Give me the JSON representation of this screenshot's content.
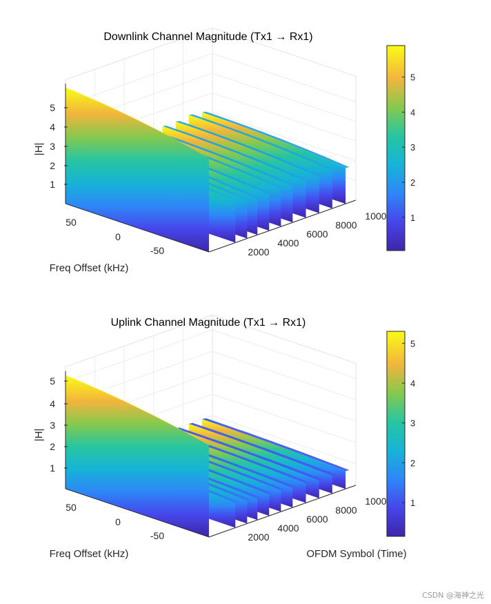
{
  "watermark": "CSDN @海神之光",
  "chart_data": [
    {
      "type": "surface",
      "title": "Downlink Channel Magnitude (Tx1 → Rx1)",
      "zlabel": "|H|",
      "ylabel": "Freq Offset (kHz)",
      "xlabel": "",
      "z_ticks": [
        "1",
        "2",
        "3",
        "4",
        "5"
      ],
      "y_ticks": [
        "50",
        "0",
        "-50"
      ],
      "x_ticks": [
        "2000",
        "4000",
        "6000",
        "8000",
        "1000"
      ],
      "zlim": [
        0,
        5.9
      ],
      "colorbar": {
        "ticks": [
          "1",
          "2",
          "3",
          "4",
          "5"
        ],
        "min": 0.05,
        "max": 5.9
      },
      "ridges": [
        {
          "x": 0,
          "peak": 5.9
        },
        {
          "x": 1800,
          "peak": 2.5
        },
        {
          "x": 2600,
          "peak": 2.3
        },
        {
          "x": 3300,
          "peak": 2.2
        },
        {
          "x": 4100,
          "peak": 2.2
        },
        {
          "x": 4900,
          "peak": 2.3
        },
        {
          "x": 5700,
          "peak": 2.2
        },
        {
          "x": 6600,
          "peak": 2.2
        },
        {
          "x": 7500,
          "peak": 2.2
        },
        {
          "x": 8400,
          "peak": 2.3
        },
        {
          "x": 9300,
          "peak": 2.2
        }
      ]
    },
    {
      "type": "surface",
      "title": "Uplink Channel Magnitude (Tx1 → Rx1)",
      "zlabel": "|H|",
      "ylabel": "Freq Offset (kHz)",
      "xlabel": "OFDM Symbol (Time)",
      "z_ticks": [
        "1",
        "2",
        "3",
        "4",
        "5"
      ],
      "y_ticks": [
        "50",
        "0",
        "-50"
      ],
      "x_ticks": [
        "2000",
        "4000",
        "6000",
        "8000",
        "1000"
      ],
      "zlim": [
        0,
        5.3
      ],
      "colorbar": {
        "ticks": [
          "1",
          "2",
          "3",
          "4",
          "5"
        ],
        "min": 0.15,
        "max": 5.3
      },
      "ridges": [
        {
          "x": 0,
          "peak": 5.3
        },
        {
          "x": 1800,
          "peak": 1.4
        },
        {
          "x": 2600,
          "peak": 1.3
        },
        {
          "x": 3300,
          "peak": 1.2
        },
        {
          "x": 4100,
          "peak": 1.2
        },
        {
          "x": 4900,
          "peak": 1.2
        },
        {
          "x": 5700,
          "peak": 1.1
        },
        {
          "x": 6600,
          "peak": 1.1
        },
        {
          "x": 7500,
          "peak": 1.0
        },
        {
          "x": 8400,
          "peak": 1.0
        },
        {
          "x": 9300,
          "peak": 1.0
        }
      ]
    }
  ]
}
